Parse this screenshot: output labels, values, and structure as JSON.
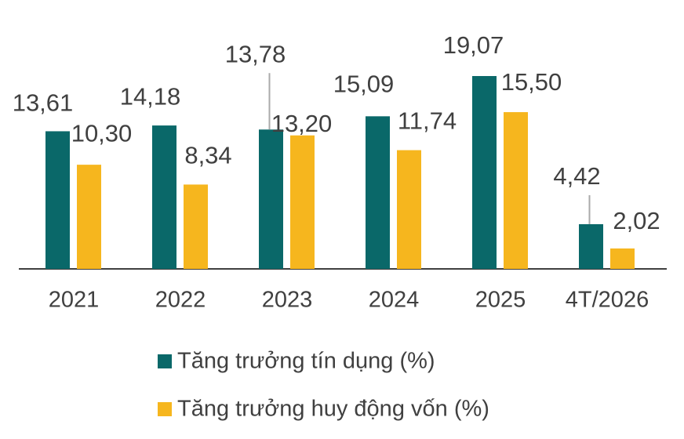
{
  "chart_data": {
    "type": "bar",
    "categories": [
      "2021",
      "2022",
      "2023",
      "2024",
      "2025",
      "4T/2026"
    ],
    "series": [
      {
        "name": "Tăng trưởng tín dụng (%)",
        "color": "#0a6869",
        "values": [
          13.61,
          14.18,
          13.78,
          15.09,
          19.07,
          4.42
        ],
        "value_labels": [
          "13,61",
          "14,18",
          "13,78",
          "15,09",
          "19,07",
          "4,42"
        ]
      },
      {
        "name": "Tăng trưởng huy động vốn (%)",
        "color": "#f6b61e",
        "values": [
          10.3,
          8.34,
          13.2,
          11.74,
          15.5,
          2.02
        ],
        "value_labels": [
          "10,30",
          "8,34",
          "13,20",
          "11,74",
          "15,50",
          "2,02"
        ]
      }
    ]
  }
}
